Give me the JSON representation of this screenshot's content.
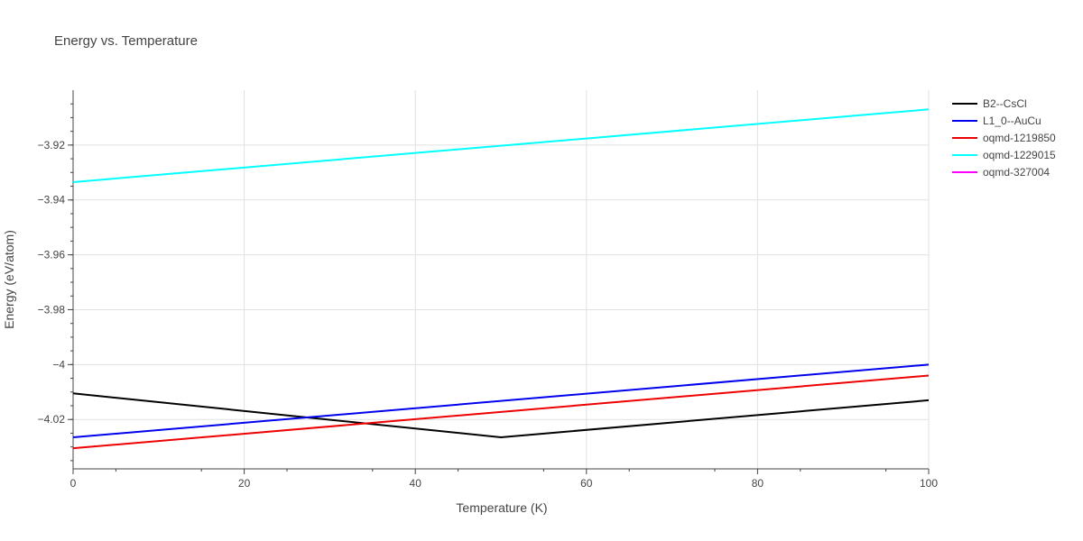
{
  "chart_data": {
    "type": "line",
    "title": "Energy vs. Temperature",
    "xlabel": "Temperature (K)",
    "ylabel": "Energy (eV/atom)",
    "xlim": [
      0,
      100
    ],
    "ylim": [
      -4.038,
      -3.9
    ],
    "x_ticks": [
      0,
      20,
      40,
      60,
      80,
      100
    ],
    "x_tick_labels": [
      "0",
      "20",
      "40",
      "60",
      "80",
      "100"
    ],
    "y_ticks": [
      -3.92,
      -3.94,
      -3.96,
      -3.98,
      -4.0,
      -4.02
    ],
    "y_tick_labels": [
      "−3.92",
      "−3.94",
      "−3.96",
      "−3.98",
      "−4",
      "−4.02"
    ],
    "grid": true,
    "legend_position": "right",
    "series": [
      {
        "name": "B2--CsCl",
        "color": "#000000",
        "x": [
          0,
          50,
          100
        ],
        "y": [
          -4.0105,
          -4.0265,
          -4.013
        ]
      },
      {
        "name": "L1_0--AuCu",
        "color": "#0000ee",
        "x": [
          0,
          100
        ],
        "y": [
          -4.0265,
          -4.0
        ]
      },
      {
        "name": "oqmd-1219850",
        "color": "#ee0000",
        "x": [
          0,
          100
        ],
        "y": [
          -4.0305,
          -4.004
        ]
      },
      {
        "name": "oqmd-1229015",
        "color": "#00ffff",
        "x": [
          0,
          100
        ],
        "y": [
          -3.9335,
          -3.907
        ]
      },
      {
        "name": "oqmd-327004",
        "color": "#ff00ff",
        "x": [],
        "y": []
      }
    ]
  }
}
